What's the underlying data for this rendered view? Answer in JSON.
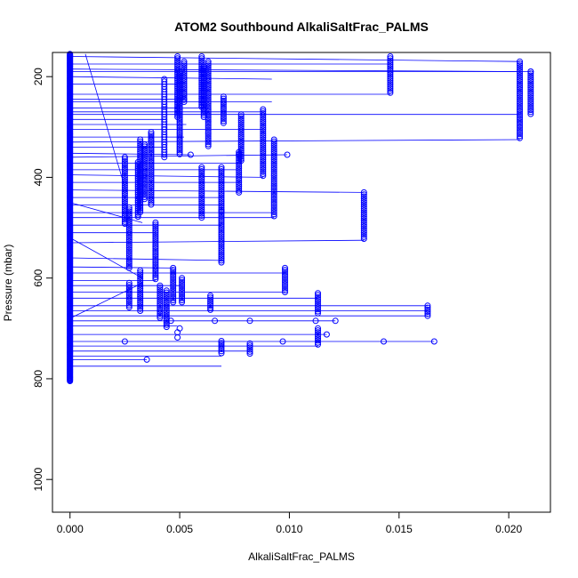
{
  "chart_data": {
    "type": "scatter",
    "title": "ATOM2 Southbound AlkaliSaltFrac_PALMS",
    "xlabel": "AlkaliSaltFrac_PALMS",
    "ylabel": "Pressure (mbar)",
    "xlim": [
      -0.0008,
      0.0219
    ],
    "ylim": [
      1065,
      152
    ],
    "y_reversed": true,
    "grid": false,
    "x_ticks": [
      0.0,
      0.005,
      0.01,
      0.015,
      0.02
    ],
    "x_tick_labels": [
      "0.000",
      "0.005",
      "0.010",
      "0.015",
      "0.020"
    ],
    "y_ticks": [
      200,
      400,
      600,
      800,
      1000
    ],
    "y_tick_labels": [
      "200",
      "400",
      "600",
      "800",
      "1000"
    ],
    "colors": {
      "points": "#0000ff",
      "line": "#0000ff"
    },
    "series": [
      {
        "marker": "open-circle",
        "columns": [
          {
            "x": 0.0,
            "p_top": 155,
            "p_bottom": 805,
            "step": 1.5
          },
          {
            "x": 0.0025,
            "p_top": 360,
            "p_bottom": 495,
            "step": 4
          },
          {
            "x": 0.0027,
            "p_top": 460,
            "p_bottom": 580,
            "step": 4
          },
          {
            "x": 0.0027,
            "p_top": 610,
            "p_bottom": 660,
            "step": 4
          },
          {
            "x": 0.0031,
            "p_top": 370,
            "p_bottom": 480,
            "step": 4
          },
          {
            "x": 0.0032,
            "p_top": 325,
            "p_bottom": 470,
            "step": 4
          },
          {
            "x": 0.0032,
            "p_top": 585,
            "p_bottom": 665,
            "step": 4
          },
          {
            "x": 0.0034,
            "p_top": 335,
            "p_bottom": 445,
            "step": 4
          },
          {
            "x": 0.0037,
            "p_top": 310,
            "p_bottom": 455,
            "step": 4
          },
          {
            "x": 0.0039,
            "p_top": 490,
            "p_bottom": 605,
            "step": 4
          },
          {
            "x": 0.0041,
            "p_top": 615,
            "p_bottom": 680,
            "step": 4
          },
          {
            "x": 0.0043,
            "p_top": 205,
            "p_bottom": 360,
            "step": 5
          },
          {
            "x": 0.0044,
            "p_top": 625,
            "p_bottom": 700,
            "step": 4
          },
          {
            "x": 0.0047,
            "p_top": 580,
            "p_bottom": 650,
            "step": 4
          },
          {
            "x": 0.0049,
            "p_top": 160,
            "p_bottom": 280,
            "step": 4
          },
          {
            "x": 0.005,
            "p_top": 190,
            "p_bottom": 355,
            "step": 4
          },
          {
            "x": 0.0051,
            "p_top": 600,
            "p_bottom": 650,
            "step": 4
          },
          {
            "x": 0.0052,
            "p_top": 170,
            "p_bottom": 250,
            "step": 4
          },
          {
            "x": 0.006,
            "p_top": 160,
            "p_bottom": 260,
            "step": 4
          },
          {
            "x": 0.0061,
            "p_top": 180,
            "p_bottom": 280,
            "step": 4
          },
          {
            "x": 0.006,
            "p_top": 380,
            "p_bottom": 480,
            "step": 4
          },
          {
            "x": 0.0063,
            "p_top": 170,
            "p_bottom": 340,
            "step": 4
          },
          {
            "x": 0.0064,
            "p_top": 635,
            "p_bottom": 665,
            "step": 4
          },
          {
            "x": 0.0069,
            "p_top": 380,
            "p_bottom": 470,
            "step": 4
          },
          {
            "x": 0.007,
            "p_top": 240,
            "p_bottom": 295,
            "step": 4
          },
          {
            "x": 0.0069,
            "p_top": 465,
            "p_bottom": 570,
            "step": 4
          },
          {
            "x": 0.0069,
            "p_top": 725,
            "p_bottom": 750,
            "step": 4
          },
          {
            "x": 0.0077,
            "p_top": 350,
            "p_bottom": 430,
            "step": 4
          },
          {
            "x": 0.0078,
            "p_top": 275,
            "p_bottom": 370,
            "step": 4
          },
          {
            "x": 0.0082,
            "p_top": 730,
            "p_bottom": 750,
            "step": 4
          },
          {
            "x": 0.0088,
            "p_top": 265,
            "p_bottom": 400,
            "step": 4
          },
          {
            "x": 0.0093,
            "p_top": 325,
            "p_bottom": 480,
            "step": 4
          },
          {
            "x": 0.0098,
            "p_top": 580,
            "p_bottom": 630,
            "step": 4
          },
          {
            "x": 0.0113,
            "p_top": 630,
            "p_bottom": 670,
            "step": 4
          },
          {
            "x": 0.0113,
            "p_top": 700,
            "p_bottom": 735,
            "step": 4
          },
          {
            "x": 0.0134,
            "p_top": 430,
            "p_bottom": 525,
            "step": 4
          },
          {
            "x": 0.0146,
            "p_top": 160,
            "p_bottom": 235,
            "step": 4
          },
          {
            "x": 0.0163,
            "p_top": 655,
            "p_bottom": 675,
            "step": 4
          },
          {
            "x": 0.0205,
            "p_top": 170,
            "p_bottom": 325,
            "step": 4
          },
          {
            "x": 0.021,
            "p_top": 190,
            "p_bottom": 275,
            "step": 4
          }
        ],
        "points": [
          [
            0.0025,
            726
          ],
          [
            0.0046,
            685
          ],
          [
            0.0055,
            355
          ],
          [
            0.0066,
            685
          ],
          [
            0.0082,
            685
          ],
          [
            0.0097,
            726
          ],
          [
            0.0099,
            355
          ],
          [
            0.0112,
            685
          ],
          [
            0.0117,
            712
          ],
          [
            0.0121,
            685
          ],
          [
            0.0143,
            726
          ],
          [
            0.0166,
            726
          ],
          [
            0.0052,
            245
          ],
          [
            0.0035,
            762
          ],
          [
            0.021,
            190
          ],
          [
            0.0077,
            355
          ],
          [
            0.0049,
            708
          ],
          [
            0.0049,
            718
          ],
          [
            0.005,
            700
          ]
        ],
        "segments": [
          [
            0.0,
            160,
            0.0205,
            170
          ],
          [
            0.0,
            175,
            0.0146,
            175
          ],
          [
            0.0,
            185,
            0.0205,
            190
          ],
          [
            0.0,
            190,
            0.021,
            190
          ],
          [
            0.0,
            200,
            0.0092,
            205
          ],
          [
            0.0,
            215,
            0.0049,
            215
          ],
          [
            0.0,
            235,
            0.0146,
            235
          ],
          [
            0.0,
            245,
            0.0052,
            245
          ],
          [
            0.0,
            250,
            0.0092,
            250
          ],
          [
            0.0,
            262,
            0.0063,
            262
          ],
          [
            0.0,
            270,
            0.0088,
            270
          ],
          [
            0.0,
            275,
            0.0205,
            275
          ],
          [
            0.0,
            285,
            0.0043,
            285
          ],
          [
            0.0,
            295,
            0.0053,
            295
          ],
          [
            0.0,
            305,
            0.0088,
            305
          ],
          [
            0.0,
            320,
            0.0052,
            320
          ],
          [
            0.0,
            330,
            0.0205,
            325
          ],
          [
            0.0,
            340,
            0.0043,
            340
          ],
          [
            0.0,
            352,
            0.0055,
            355
          ],
          [
            0.0,
            360,
            0.0099,
            355
          ],
          [
            0.0,
            372,
            0.0078,
            372
          ],
          [
            0.0,
            385,
            0.0078,
            385
          ],
          [
            0.0,
            395,
            0.0088,
            400
          ],
          [
            0.0,
            410,
            0.0077,
            410
          ],
          [
            0.0,
            425,
            0.0134,
            430
          ],
          [
            0.0,
            440,
            0.0069,
            440
          ],
          [
            0.0,
            455,
            0.0069,
            455
          ],
          [
            0.0,
            470,
            0.0093,
            470
          ],
          [
            0.0,
            480,
            0.0093,
            480
          ],
          [
            0.0,
            495,
            0.0069,
            495
          ],
          [
            0.0,
            510,
            0.0039,
            510
          ],
          [
            0.0,
            530,
            0.0134,
            525
          ],
          [
            0.0,
            560,
            0.0069,
            565
          ],
          [
            0.0,
            578,
            0.0047,
            580
          ],
          [
            0.0,
            590,
            0.0098,
            590
          ],
          [
            0.0,
            605,
            0.0039,
            605
          ],
          [
            0.0,
            615,
            0.0051,
            615
          ],
          [
            0.0,
            628,
            0.0098,
            628
          ],
          [
            0.0,
            640,
            0.0113,
            640
          ],
          [
            0.0,
            655,
            0.0163,
            655
          ],
          [
            0.0,
            665,
            0.0163,
            665
          ],
          [
            0.0,
            675,
            0.0163,
            675
          ],
          [
            0.0,
            685,
            0.0121,
            685
          ],
          [
            0.0,
            695,
            0.0049,
            695
          ],
          [
            0.0,
            712,
            0.0117,
            712
          ],
          [
            0.0,
            726,
            0.0166,
            726
          ],
          [
            0.0,
            735,
            0.0113,
            735
          ],
          [
            0.0,
            745,
            0.0082,
            745
          ],
          [
            0.0,
            755,
            0.0069,
            755
          ],
          [
            0.0,
            762,
            0.0035,
            762
          ],
          [
            0.0,
            775,
            0.0069,
            775
          ],
          [
            0.0007,
            155,
            0.0025,
            420
          ],
          [
            0.0,
            450,
            0.0033,
            490
          ],
          [
            0.0,
            520,
            0.0033,
            600
          ],
          [
            0.0,
            680,
            0.0033,
            610
          ]
        ]
      }
    ]
  }
}
